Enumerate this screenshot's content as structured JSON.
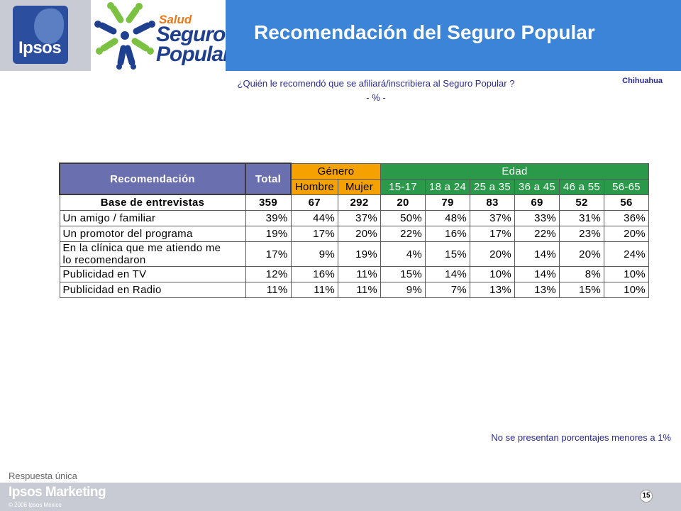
{
  "header": {
    "ipsos_logo": "Ipsos",
    "sp_logo": {
      "salud": "Salud",
      "seguro": "Seguro",
      "popular": "Popular"
    },
    "title": "Recomendación del Seguro Popular"
  },
  "question": {
    "line1": "¿Quién le recomendó que se afiliará/inscribiera al Seguro Popular ?",
    "line2": "- % -"
  },
  "region": "Chihuahua",
  "table": {
    "col_rec": "Recomendación",
    "col_total": "Total",
    "group_gen": "Género",
    "group_edad": "Edad",
    "sub_gen": [
      "Hombre",
      "Mujer"
    ],
    "sub_edad": [
      "15-17",
      "18 a 24",
      "25 a 35",
      "36 a 45",
      "46 a 55",
      "56-65"
    ],
    "base": {
      "label": "Base de entrevistas",
      "values": [
        "359",
        "67",
        "292",
        "20",
        "79",
        "83",
        "69",
        "52",
        "56"
      ]
    },
    "rows": [
      {
        "label": "Un amigo / familiar",
        "values": [
          "39%",
          "44%",
          "37%",
          "50%",
          "48%",
          "37%",
          "33%",
          "31%",
          "36%"
        ]
      },
      {
        "label": "Un promotor del programa",
        "values": [
          "19%",
          "17%",
          "20%",
          "22%",
          "16%",
          "17%",
          "22%",
          "23%",
          "20%"
        ]
      },
      {
        "label_line1": "En la clínica que me atiendo me",
        "label_line2": "lo recomendaron",
        "values": [
          "17%",
          "9%",
          "19%",
          "4%",
          "15%",
          "20%",
          "14%",
          "20%",
          "24%"
        ]
      },
      {
        "label": "Publicidad en TV",
        "values": [
          "12%",
          "16%",
          "11%",
          "15%",
          "14%",
          "10%",
          "14%",
          "8%",
          "10%"
        ]
      },
      {
        "label": "Publicidad en Radio",
        "values": [
          "11%",
          "11%",
          "11%",
          "9%",
          "7%",
          "13%",
          "13%",
          "15%",
          "10%"
        ]
      }
    ]
  },
  "note": "No se presentan porcentajes menores a 1%",
  "respuesta": "Respuesta única",
  "footer": {
    "brand": "Ipsos Marketing",
    "copyright": "© 2008 Ipsos México",
    "page": "15"
  }
}
